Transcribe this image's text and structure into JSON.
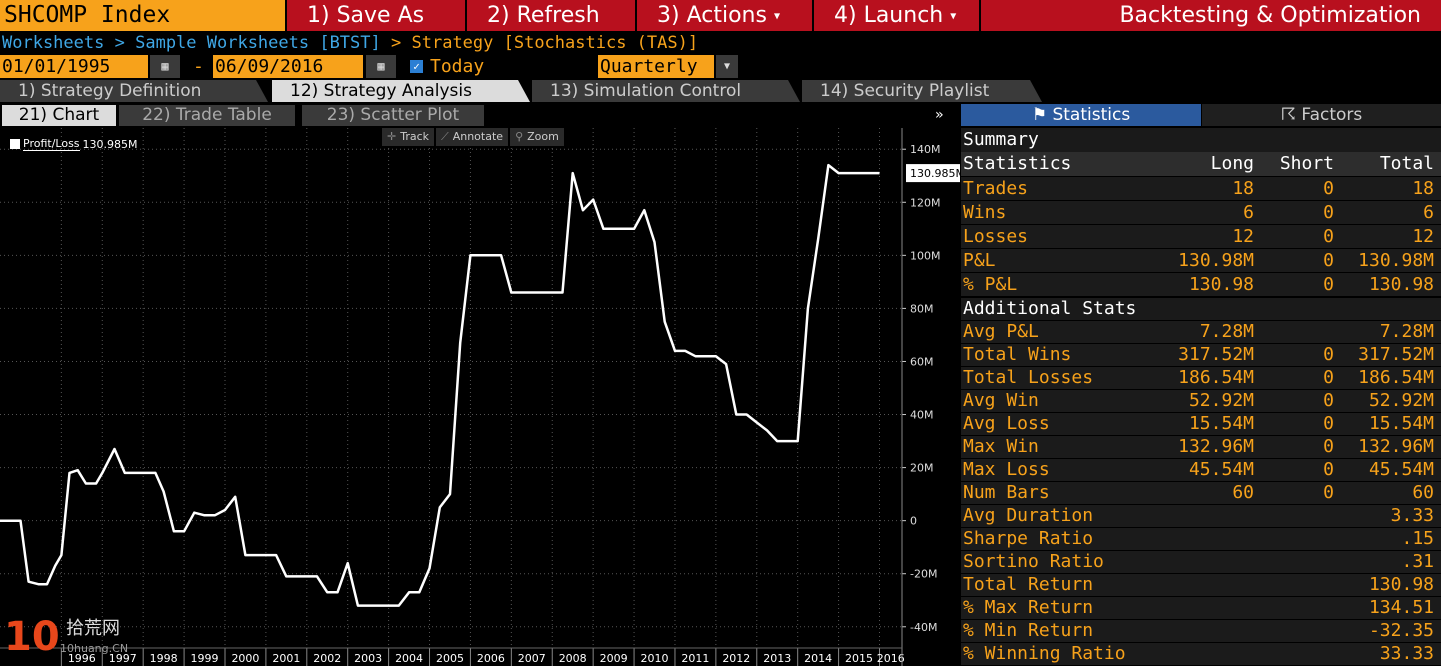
{
  "top": {
    "ticker": "SHCOMP Index",
    "buttons": [
      "1) Save As",
      "2) Refresh",
      "3) Actions",
      "4) Launch"
    ],
    "title": "Backtesting & Optimization"
  },
  "breadcrumb": {
    "link1": "Worksheets",
    "link2": "Sample Worksheets [BTST]",
    "current": "Strategy [Stochastics (TAS)]",
    "sep": ">"
  },
  "dates": {
    "start": "01/01/1995",
    "end": "06/09/2016",
    "dash": "-",
    "today_label": "Today",
    "period": "Quarterly"
  },
  "main_tabs": [
    "1) Strategy Definition",
    "12) Strategy Analysis",
    "13) Simulation Control",
    "14) Security Playlist"
  ],
  "sub_tabs": [
    "21) Chart",
    "22) Trade Table",
    "23) Scatter Plot"
  ],
  "chart_tools": [
    "Track",
    "Annotate",
    "Zoom"
  ],
  "legend": {
    "label": "Profit/Loss",
    "value": "130.985M"
  },
  "right_panel": {
    "tab_statistics": "Statistics",
    "tab_factors": "Factors",
    "summary_title": "Summary",
    "header": [
      "Statistics",
      "Long",
      "Short",
      "Total"
    ],
    "summary_rows": [
      {
        "label": "Trades",
        "long": "18",
        "short": "0",
        "total": "18"
      },
      {
        "label": "Wins",
        "long": "6",
        "short": "0",
        "total": "6"
      },
      {
        "label": "Losses",
        "long": "12",
        "short": "0",
        "total": "12"
      },
      {
        "label": "P&L",
        "long": "130.98M",
        "short": "0",
        "total": "130.98M"
      },
      {
        "label": "% P&L",
        "long": "130.98",
        "short": "0",
        "total": "130.98"
      }
    ],
    "additional_title": "Additional Stats",
    "additional_rows": [
      {
        "label": "Avg P&L",
        "long": "7.28M",
        "short": "",
        "total": "7.28M"
      },
      {
        "label": "Total Wins",
        "long": "317.52M",
        "short": "0",
        "total": "317.52M"
      },
      {
        "label": "Total Losses",
        "long": "186.54M",
        "short": "0",
        "total": "186.54M"
      },
      {
        "label": "Avg Win",
        "long": "52.92M",
        "short": "0",
        "total": "52.92M"
      },
      {
        "label": "Avg Loss",
        "long": "15.54M",
        "short": "0",
        "total": "15.54M"
      },
      {
        "label": "Max Win",
        "long": "132.96M",
        "short": "0",
        "total": "132.96M"
      },
      {
        "label": "Max Loss",
        "long": "45.54M",
        "short": "0",
        "total": "45.54M"
      },
      {
        "label": "Num Bars",
        "long": "60",
        "short": "0",
        "total": "60"
      },
      {
        "label": "Avg Duration",
        "long": "",
        "short": "",
        "total": "3.33"
      },
      {
        "label": "Sharpe Ratio",
        "long": "",
        "short": "",
        "total": ".15"
      },
      {
        "label": "Sortino Ratio",
        "long": "",
        "short": "",
        "total": ".31"
      },
      {
        "label": "Total Return",
        "long": "",
        "short": "",
        "total": "130.98"
      },
      {
        "label": "% Max Return",
        "long": "",
        "short": "",
        "total": "134.51"
      },
      {
        "label": "% Min Return",
        "long": "",
        "short": "",
        "total": "-32.35"
      },
      {
        "label": "% Winning Ratio",
        "long": "",
        "short": "",
        "total": "33.33"
      }
    ]
  },
  "watermark": {
    "number": "10",
    "text": "拾荒网",
    "url": "10huang.CN"
  },
  "chart_data": {
    "type": "line",
    "title": "",
    "xlabel": "",
    "ylabel": "",
    "series": [
      {
        "name": "Profit/Loss",
        "x": [
          1994.5,
          1995.0,
          1995.2,
          1995.45,
          1995.65,
          1995.85,
          1996.0,
          1996.2,
          1996.4,
          1996.6,
          1996.85,
          1997.0,
          1997.3,
          1997.55,
          1997.8,
          1998.0,
          1998.3,
          1998.5,
          1998.75,
          1999.0,
          1999.25,
          1999.5,
          1999.75,
          2000.0,
          2000.25,
          2000.5,
          2000.8,
          2001.0,
          2001.25,
          2001.5,
          2001.75,
          2002.0,
          2002.25,
          2002.5,
          2002.75,
          2003.0,
          2003.25,
          2003.5,
          2003.75,
          2004.0,
          2004.25,
          2004.5,
          2004.75,
          2005.0,
          2005.25,
          2005.5,
          2005.75,
          2006.0,
          2006.25,
          2006.5,
          2006.75,
          2007.0,
          2007.25,
          2007.5,
          2007.75,
          2008.0,
          2008.25,
          2008.5,
          2008.75,
          2009.0,
          2009.25,
          2009.5,
          2009.75,
          2010.0,
          2010.25,
          2010.5,
          2010.75,
          2011.0,
          2011.25,
          2011.5,
          2011.75,
          2012.0,
          2012.25,
          2012.5,
          2012.75,
          2013.0,
          2013.25,
          2013.5,
          2013.75,
          2014.0,
          2014.25,
          2014.5,
          2014.75,
          2015.0,
          2015.25,
          2015.5,
          2015.75,
          2016.0
        ],
        "y": [
          0,
          0,
          -23,
          -24,
          -24,
          -17,
          -13,
          18,
          19,
          14,
          14,
          18,
          27,
          18,
          18,
          18,
          18,
          11,
          -4,
          -4,
          3,
          2,
          2,
          4,
          9,
          -13,
          -13,
          -13,
          -13,
          -21,
          -21,
          -21,
          -21,
          -27,
          -27,
          -16,
          -32,
          -32,
          -32,
          -32,
          -32,
          -27,
          -27,
          -18,
          5,
          10,
          67,
          100,
          100,
          100,
          100,
          86,
          86,
          86,
          86,
          86,
          86,
          131,
          117,
          121,
          110,
          110,
          110,
          110,
          117,
          105,
          75,
          64,
          64,
          62,
          62,
          62,
          59,
          40,
          40,
          37,
          34,
          30,
          30,
          30,
          80,
          106,
          134,
          131,
          131,
          131,
          131,
          131
        ]
      }
    ],
    "x_ticks": [
      "1996",
      "1997",
      "1998",
      "1999",
      "2000",
      "2001",
      "2002",
      "2003",
      "2004",
      "2005",
      "2006",
      "2007",
      "2008",
      "2009",
      "2010",
      "2011",
      "2012",
      "2013",
      "2014",
      "2015",
      "2016"
    ],
    "y_ticks": [
      140,
      120,
      100,
      80,
      60,
      40,
      20,
      0,
      -20,
      -40
    ],
    "y_tick_labels": [
      "140M",
      "120M",
      "100M",
      "80M",
      "60M",
      "40M",
      "20M",
      "0",
      "-20M",
      "-40M"
    ],
    "ylim": [
      -48,
      148
    ],
    "xlim": [
      1994.5,
      2016.55
    ],
    "last_value_label": "130.985M",
    "grid": true,
    "colors": {
      "line": "#ffffff",
      "grid": "#555555",
      "background": "#000000"
    }
  },
  "colors": {
    "accent": "#f7a21b",
    "command": "#b8101e",
    "link": "#3fa7e6",
    "active_tab": "#2b5a9e"
  }
}
